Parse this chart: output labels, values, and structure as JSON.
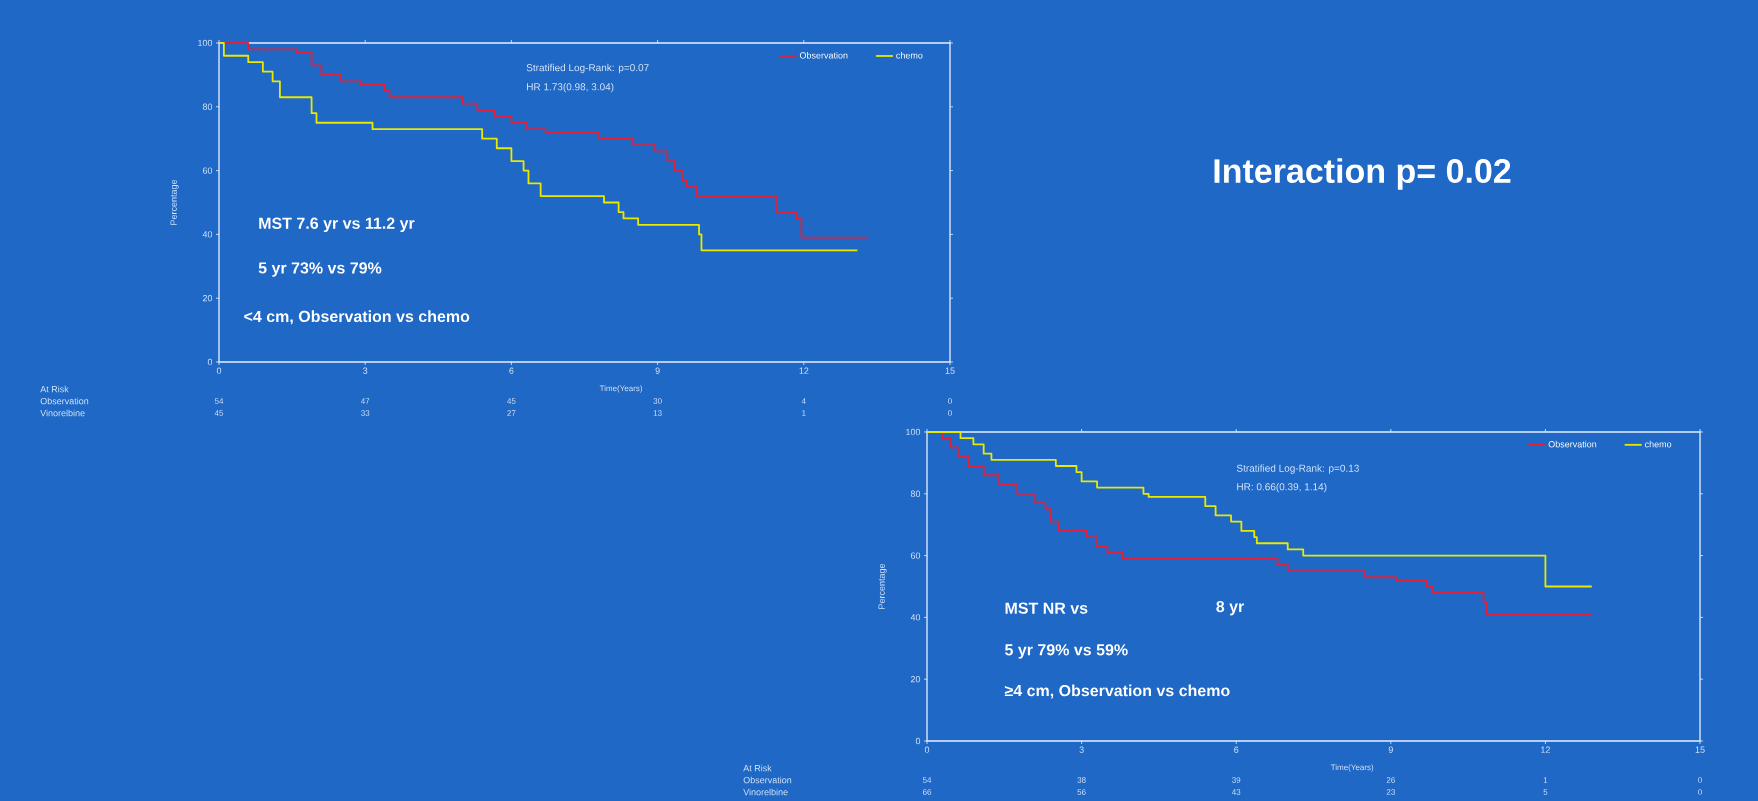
{
  "chart_data": [
    {
      "type": "step",
      "xlabel": "Time(Years)",
      "ylabel": "Percentage",
      "xlim": [
        0,
        15
      ],
      "ylim": [
        0,
        100
      ],
      "xticks": [
        0,
        3,
        6,
        9,
        12,
        15
      ],
      "yticks": [
        0,
        20,
        40,
        60,
        80,
        100
      ],
      "legend": "top right",
      "series": [
        {
          "name": "Observation",
          "color": "#e0203a",
          "x": [
            0,
            0.6,
            1.6,
            1.9,
            2.1,
            2.5,
            2.9,
            3.4,
            3.5,
            5.0,
            5.3,
            5.65,
            6.0,
            6.3,
            6.7,
            7.8,
            8.5,
            8.95,
            9.2,
            9.35,
            9.5,
            9.6,
            9.8,
            11.45,
            11.85,
            11.95,
            13.3
          ],
          "values": [
            100,
            98,
            97,
            93,
            90,
            88,
            87,
            85,
            83,
            81,
            79,
            77,
            75,
            73,
            72,
            70,
            68,
            66,
            63,
            60,
            57,
            55,
            52,
            47,
            45,
            39,
            39
          ]
        },
        {
          "name": "chemo",
          "color": "#e8e800",
          "x": [
            0,
            0.1,
            0.6,
            0.9,
            1.1,
            1.25,
            1.9,
            2.0,
            3.15,
            5.4,
            5.7,
            6.0,
            6.25,
            6.35,
            6.6,
            7.9,
            8.2,
            8.3,
            8.6,
            9.85,
            9.9,
            13.1
          ],
          "values": [
            100,
            96,
            94,
            91,
            88,
            83,
            78,
            75,
            73,
            70,
            67,
            63,
            60,
            56,
            52,
            50,
            47,
            45,
            43,
            40,
            35,
            35
          ]
        }
      ],
      "annotations": [
        "Stratified Log-Rank: p=0.07",
        "HR 1.73(0.98, 3.04)",
        "MST 7.6 yr vs 11.2 yr",
        "5 yr 73% vs 79%",
        "<4 cm, Observation vs chemo",
        "At Risk",
        "Observation",
        "Vinorelbine",
        "54",
        "47",
        "45",
        "30",
        "4",
        "0",
        "45",
        "33",
        "27",
        "13",
        "1",
        "0"
      ]
    },
    {
      "type": "other",
      "title": "Interaction p= 0.02"
    },
    {
      "type": "step",
      "xlabel": "Time(Years)",
      "ylabel": "Percentage",
      "xlim": [
        0,
        15
      ],
      "ylim": [
        0,
        100
      ],
      "xticks": [
        0,
        3,
        6,
        9,
        12,
        15
      ],
      "yticks": [
        0,
        20,
        40,
        60,
        80,
        100
      ],
      "legend": "top right",
      "series": [
        {
          "name": "Observation",
          "color": "#e0203a",
          "x": [
            0,
            0.3,
            0.45,
            0.6,
            0.8,
            1.1,
            1.4,
            1.75,
            2.1,
            2.3,
            2.4,
            2.55,
            3.1,
            3.3,
            3.5,
            3.8,
            6.8,
            7.0,
            8.5,
            9.1,
            9.7,
            9.8,
            10.8,
            10.85,
            12.9
          ],
          "values": [
            100,
            98,
            95,
            92,
            89,
            86,
            83,
            80,
            77,
            75,
            71,
            68,
            66,
            63,
            61,
            59,
            57,
            55,
            53,
            52,
            50,
            48,
            45,
            41,
            41
          ]
        },
        {
          "name": "chemo",
          "color": "#e8e800",
          "x": [
            0,
            0.65,
            0.9,
            1.1,
            1.25,
            2.5,
            2.9,
            3.0,
            3.3,
            4.2,
            4.3,
            5.4,
            5.6,
            5.9,
            6.1,
            6.35,
            6.4,
            7.0,
            7.3,
            12.0,
            12.9
          ],
          "values": [
            100,
            98,
            96,
            93,
            91,
            89,
            87,
            84,
            82,
            80,
            79,
            76,
            73,
            71,
            68,
            66,
            64,
            62,
            60,
            50,
            50
          ]
        }
      ],
      "annotations": [
        "Stratified Log-Rank: p=0.13",
        "HR: 0.66(0.39, 1.14)",
        "MST  NR vs",
        "8 yr",
        "5 yr 79% vs 59%",
        "≥4 cm, Observation vs chemo",
        "At Risk",
        "Observation",
        "Vinorelbine",
        "54",
        "38",
        "39",
        "26",
        "1",
        "0",
        "66",
        "56",
        "43",
        "23",
        "5",
        "0"
      ]
    }
  ]
}
